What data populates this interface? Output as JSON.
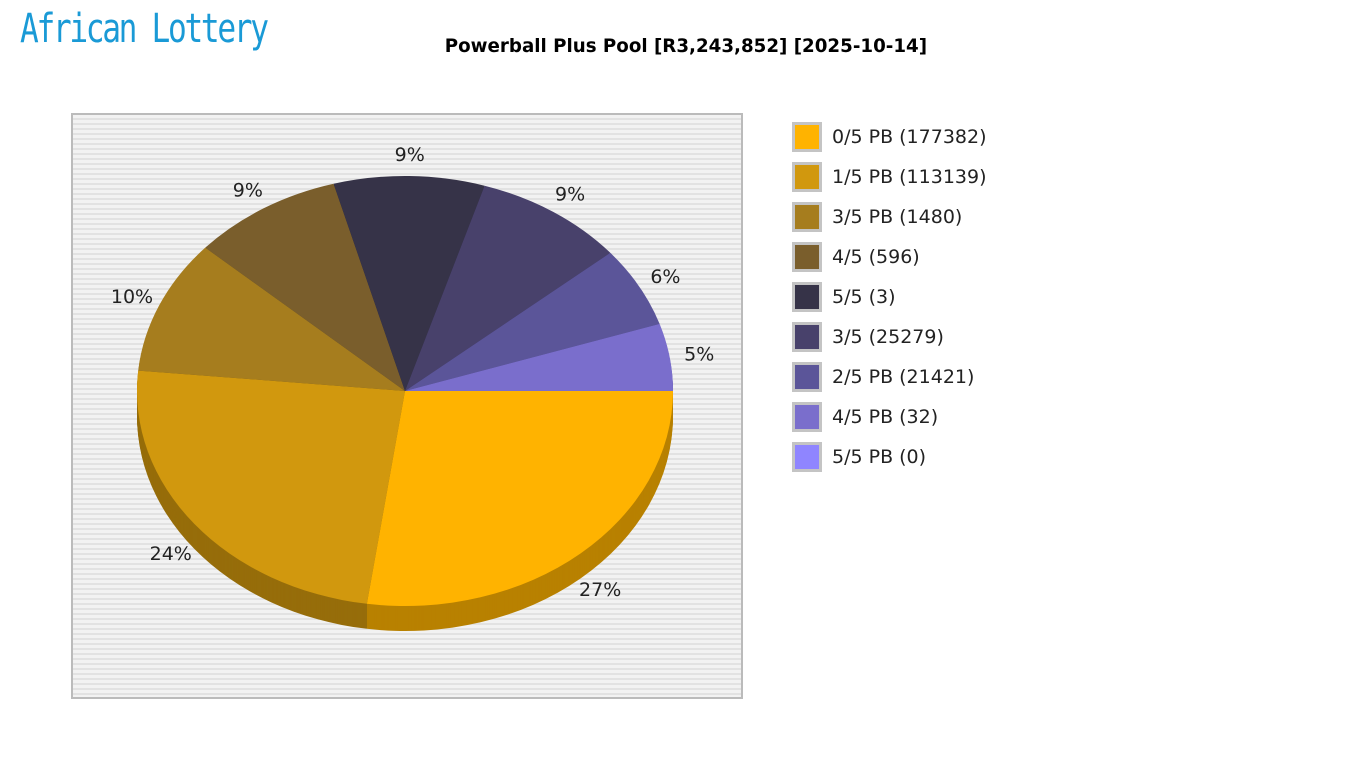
{
  "logo_text": "African Lottery",
  "chart_data": {
    "type": "pie",
    "title": "Powerball Plus Pool [R3,243,852] [2025-10-14]",
    "legend_position": "right",
    "slices": [
      {
        "label": "0/5 PB (177382)",
        "percent": 27,
        "color": "#FFB300"
      },
      {
        "label": "1/5 PB (113139)",
        "percent": 24,
        "color": "#D1980E"
      },
      {
        "label": "3/5 PB (1480)",
        "percent": 10,
        "color": "#A67D1E"
      },
      {
        "label": "4/5 (596)",
        "percent": 9,
        "color": "#7A5E2C"
      },
      {
        "label": "5/5 (3)",
        "percent": 9,
        "color": "#363348"
      },
      {
        "label": "3/5 (25279)",
        "percent": 9,
        "color": "#48416B"
      },
      {
        "label": "2/5 PB (21421)",
        "percent": 6,
        "color": "#5B5599"
      },
      {
        "label": "4/5 PB (32)",
        "percent": 5,
        "color": "#7A6ECC"
      },
      {
        "label": "5/5 PB (0)",
        "percent": 0,
        "color": "#8F85FF"
      }
    ],
    "percent_labels": [
      "27%",
      "24%",
      "10%",
      "9%",
      "9%",
      "9%",
      "6%",
      "5%"
    ]
  }
}
